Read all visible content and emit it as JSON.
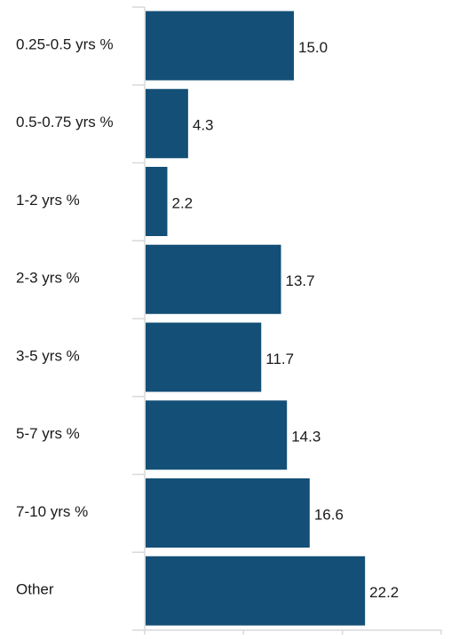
{
  "chart_data": {
    "type": "bar",
    "orientation": "horizontal",
    "categories": [
      "0.25-0.5 yrs %",
      "0.5-0.75 yrs %",
      "1-2 yrs %",
      "2-3 yrs %",
      "3-5 yrs %",
      "5-7 yrs %",
      "7-10 yrs %",
      "Other"
    ],
    "values": [
      15.0,
      4.3,
      2.2,
      13.7,
      11.7,
      14.3,
      16.6,
      22.2
    ],
    "value_labels": [
      "15.0",
      "4.3",
      "2.2",
      "13.7",
      "11.7",
      "14.3",
      "16.6",
      "22.2"
    ],
    "title": "",
    "xlabel": "",
    "ylabel": "",
    "xlim": [
      0,
      30
    ],
    "grid": false,
    "legend": "none",
    "bar_color": "#134f76",
    "axis_color": "#d9d9d9"
  }
}
